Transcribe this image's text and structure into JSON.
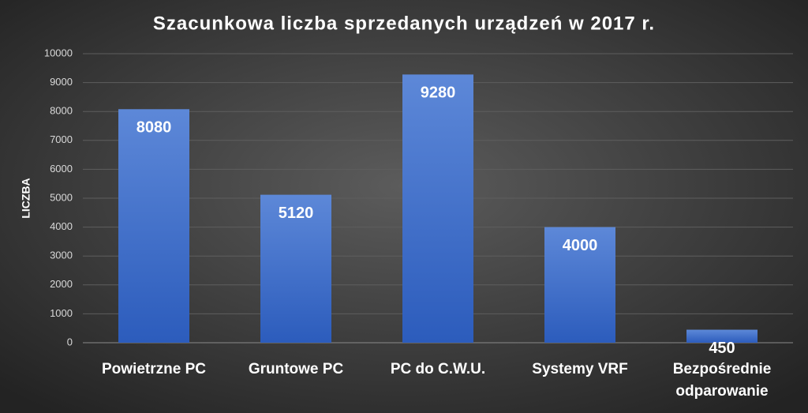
{
  "chart_data": {
    "type": "bar",
    "title": "Szacunkowa liczba sprzedanych urządzeń w 2017 r.",
    "y_label": "LICZBA",
    "categories": [
      "Powietrzne PC",
      "Gruntowe PC",
      "PC do C.W.U.",
      "Systemy VRF",
      "Bezpośrednie odparowanie"
    ],
    "values": [
      8080,
      5120,
      9280,
      4000,
      450
    ],
    "color": "#4472c4",
    "ylim": [
      0,
      10000
    ],
    "yticks": [
      0,
      1000,
      2000,
      3000,
      4000,
      5000,
      6000,
      7000,
      8000,
      9000,
      10000
    ],
    "grid": true
  }
}
